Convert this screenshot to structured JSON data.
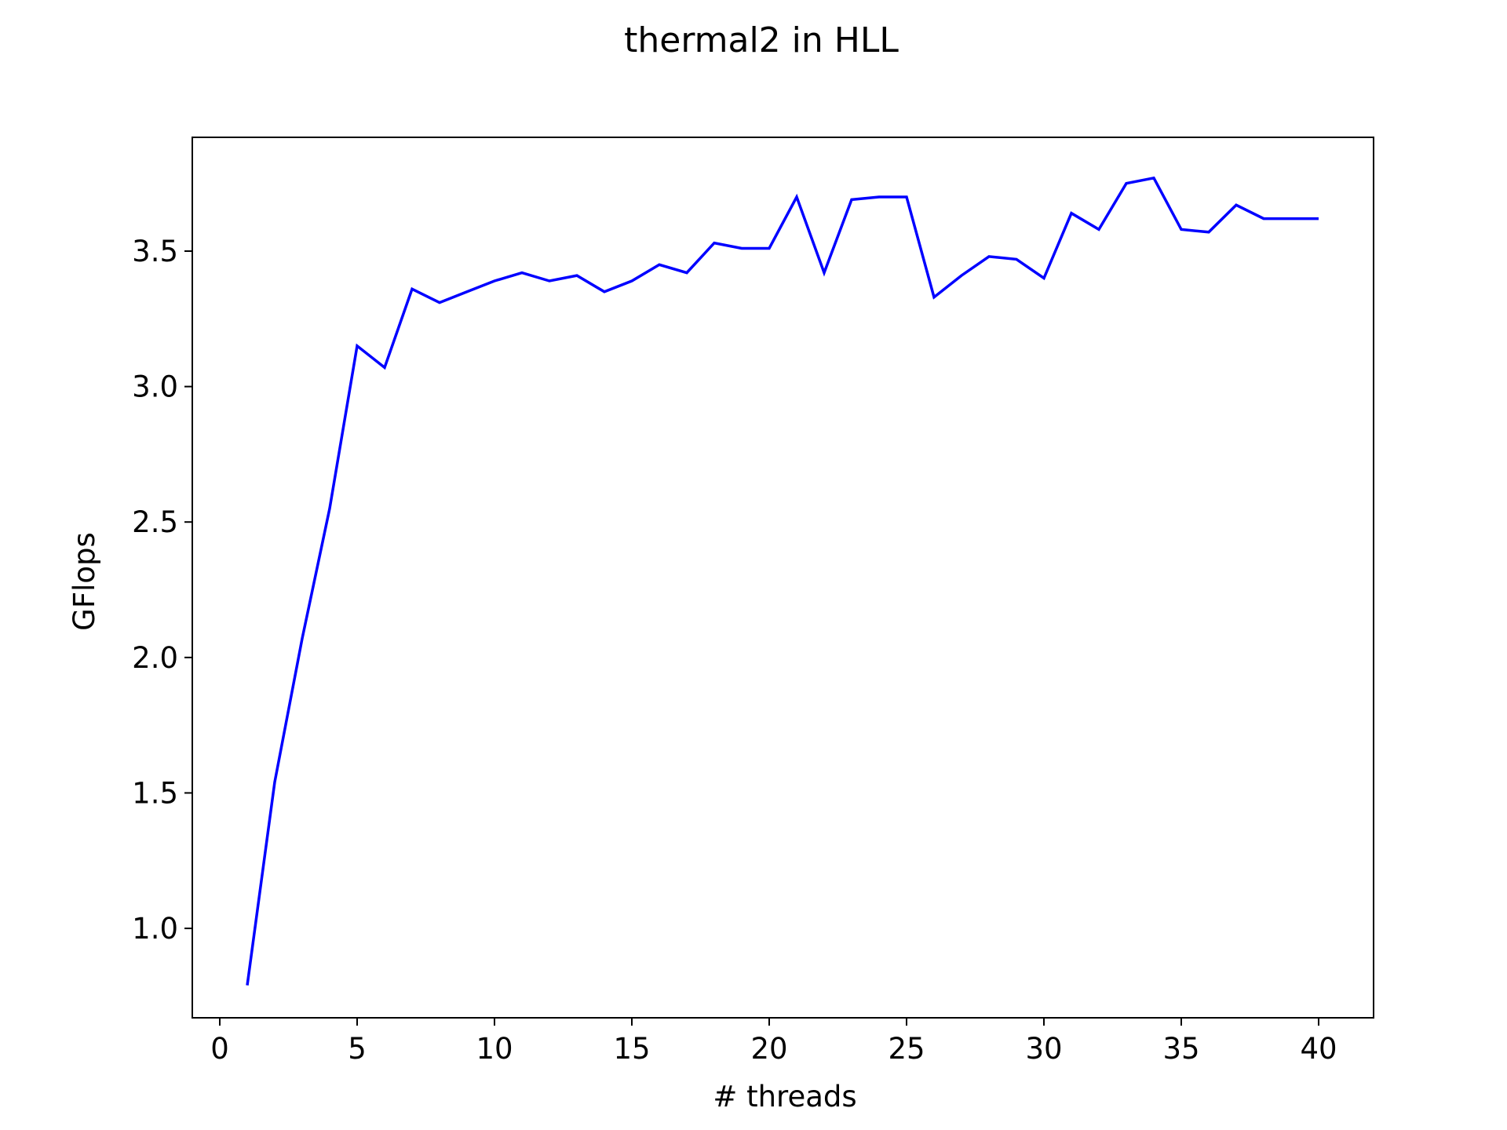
{
  "chart_data": {
    "type": "line",
    "title": "thermal2 in HLL",
    "xlabel": "# threads",
    "ylabel": "GFlops",
    "xlim": [
      -1,
      42
    ],
    "ylim": [
      0.67,
      3.92
    ],
    "xticks": [
      0,
      5,
      10,
      15,
      20,
      25,
      30,
      35,
      40
    ],
    "yticks": [
      1.0,
      1.5,
      2.0,
      2.5,
      3.0,
      3.5
    ],
    "xtick_labels": [
      "0",
      "5",
      "10",
      "15",
      "20",
      "25",
      "30",
      "35",
      "40"
    ],
    "ytick_labels": [
      "1.0",
      "1.5",
      "2.0",
      "2.5",
      "3.0",
      "3.5"
    ],
    "grid": false,
    "series": [
      {
        "color": "#0000ff",
        "x": [
          1,
          2,
          3,
          4,
          5,
          6,
          7,
          8,
          9,
          10,
          11,
          12,
          13,
          14,
          15,
          16,
          17,
          18,
          19,
          20,
          21,
          22,
          23,
          24,
          25,
          26,
          27,
          28,
          29,
          30,
          31,
          32,
          33,
          34,
          35,
          36,
          37,
          38,
          39,
          40
        ],
        "y": [
          0.79,
          1.54,
          2.07,
          2.55,
          3.15,
          3.07,
          3.36,
          3.31,
          3.35,
          3.39,
          3.42,
          3.39,
          3.41,
          3.35,
          3.39,
          3.45,
          3.42,
          3.53,
          3.51,
          3.51,
          3.7,
          3.42,
          3.69,
          3.7,
          3.7,
          3.33,
          3.41,
          3.48,
          3.47,
          3.4,
          3.64,
          3.58,
          3.75,
          3.77,
          3.58,
          3.57,
          3.67,
          3.62,
          3.62,
          3.62
        ]
      }
    ]
  }
}
